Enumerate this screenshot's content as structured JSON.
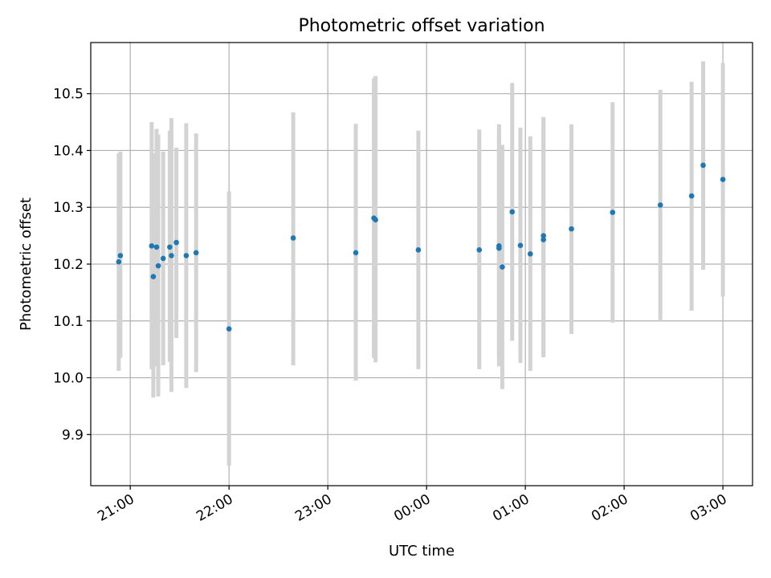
{
  "chart_data": {
    "type": "scatter",
    "title": "Photometric offset variation",
    "xlabel": "UTC time",
    "ylabel": "Photometric offset",
    "x_axis_type": "time",
    "xlim": [
      "20:36",
      "03:18"
    ],
    "ylim": [
      9.81,
      10.59
    ],
    "grid": true,
    "x_ticks": [
      "21:00",
      "22:00",
      "23:00",
      "00:00",
      "01:00",
      "02:00",
      "03:00"
    ],
    "y_ticks": [
      "9.9",
      "10.0",
      "10.1",
      "10.2",
      "10.3",
      "10.4",
      "10.5"
    ],
    "colors": {
      "point": "#1f77b4",
      "errorbar": "#d3d3d3",
      "grid": "#b0b0b0"
    },
    "series": [
      {
        "points": [
          {
            "x": "20:53",
            "y": 10.204,
            "y_low": 10.012,
            "y_high": 10.395
          },
          {
            "x": "20:54",
            "y": 10.215,
            "y_low": 10.035,
            "y_high": 10.398
          },
          {
            "x": "21:13",
            "y": 10.232,
            "y_low": 10.015,
            "y_high": 10.45
          },
          {
            "x": "21:14",
            "y": 10.178,
            "y_low": 9.965,
            "y_high": 10.395
          },
          {
            "x": "21:16",
            "y": 10.23,
            "y_low": 10.02,
            "y_high": 10.438
          },
          {
            "x": "21:17",
            "y": 10.197,
            "y_low": 9.967,
            "y_high": 10.428
          },
          {
            "x": "21:20",
            "y": 10.21,
            "y_low": 10.022,
            "y_high": 10.398
          },
          {
            "x": "21:24",
            "y": 10.23,
            "y_low": 10.028,
            "y_high": 10.435
          },
          {
            "x": "21:25",
            "y": 10.215,
            "y_low": 9.975,
            "y_high": 10.457
          },
          {
            "x": "21:28",
            "y": 10.238,
            "y_low": 10.07,
            "y_high": 10.405
          },
          {
            "x": "21:34",
            "y": 10.215,
            "y_low": 9.982,
            "y_high": 10.448
          },
          {
            "x": "21:40",
            "y": 10.22,
            "y_low": 10.01,
            "y_high": 10.43
          },
          {
            "x": "22:00",
            "y": 10.086,
            "y_low": 9.845,
            "y_high": 10.328
          },
          {
            "x": "22:39",
            "y": 10.246,
            "y_low": 10.022,
            "y_high": 10.467
          },
          {
            "x": "23:17",
            "y": 10.22,
            "y_low": 9.995,
            "y_high": 10.447
          },
          {
            "x": "23:28",
            "y": 10.281,
            "y_low": 10.035,
            "y_high": 10.527
          },
          {
            "x": "23:29",
            "y": 10.278,
            "y_low": 10.027,
            "y_high": 10.531
          },
          {
            "x": "23:55",
            "y": 10.225,
            "y_low": 10.015,
            "y_high": 10.435
          },
          {
            "x": "00:32",
            "y": 10.225,
            "y_low": 10.015,
            "y_high": 10.437
          },
          {
            "x": "00:44",
            "y": 10.228,
            "y_low": 10.02,
            "y_high": 10.446
          },
          {
            "x": "00:44",
            "y": 10.232,
            "y_low": 10.038,
            "y_high": 10.428
          },
          {
            "x": "00:46",
            "y": 10.195,
            "y_low": 9.98,
            "y_high": 10.41
          },
          {
            "x": "00:52",
            "y": 10.292,
            "y_low": 10.065,
            "y_high": 10.519
          },
          {
            "x": "00:57",
            "y": 10.233,
            "y_low": 10.026,
            "y_high": 10.44
          },
          {
            "x": "01:03",
            "y": 10.218,
            "y_low": 10.012,
            "y_high": 10.425
          },
          {
            "x": "01:11",
            "y": 10.243,
            "y_low": 10.036,
            "y_high": 10.45
          },
          {
            "x": "01:11",
            "y": 10.25,
            "y_low": 10.041,
            "y_high": 10.459
          },
          {
            "x": "01:28",
            "y": 10.262,
            "y_low": 10.077,
            "y_high": 10.446
          },
          {
            "x": "01:53",
            "y": 10.291,
            "y_low": 10.097,
            "y_high": 10.485
          },
          {
            "x": "02:22",
            "y": 10.304,
            "y_low": 10.1,
            "y_high": 10.507
          },
          {
            "x": "02:41",
            "y": 10.32,
            "y_low": 10.118,
            "y_high": 10.521
          },
          {
            "x": "02:48",
            "y": 10.374,
            "y_low": 10.19,
            "y_high": 10.557
          },
          {
            "x": "03:00",
            "y": 10.349,
            "y_low": 10.143,
            "y_high": 10.554
          }
        ]
      }
    ]
  }
}
